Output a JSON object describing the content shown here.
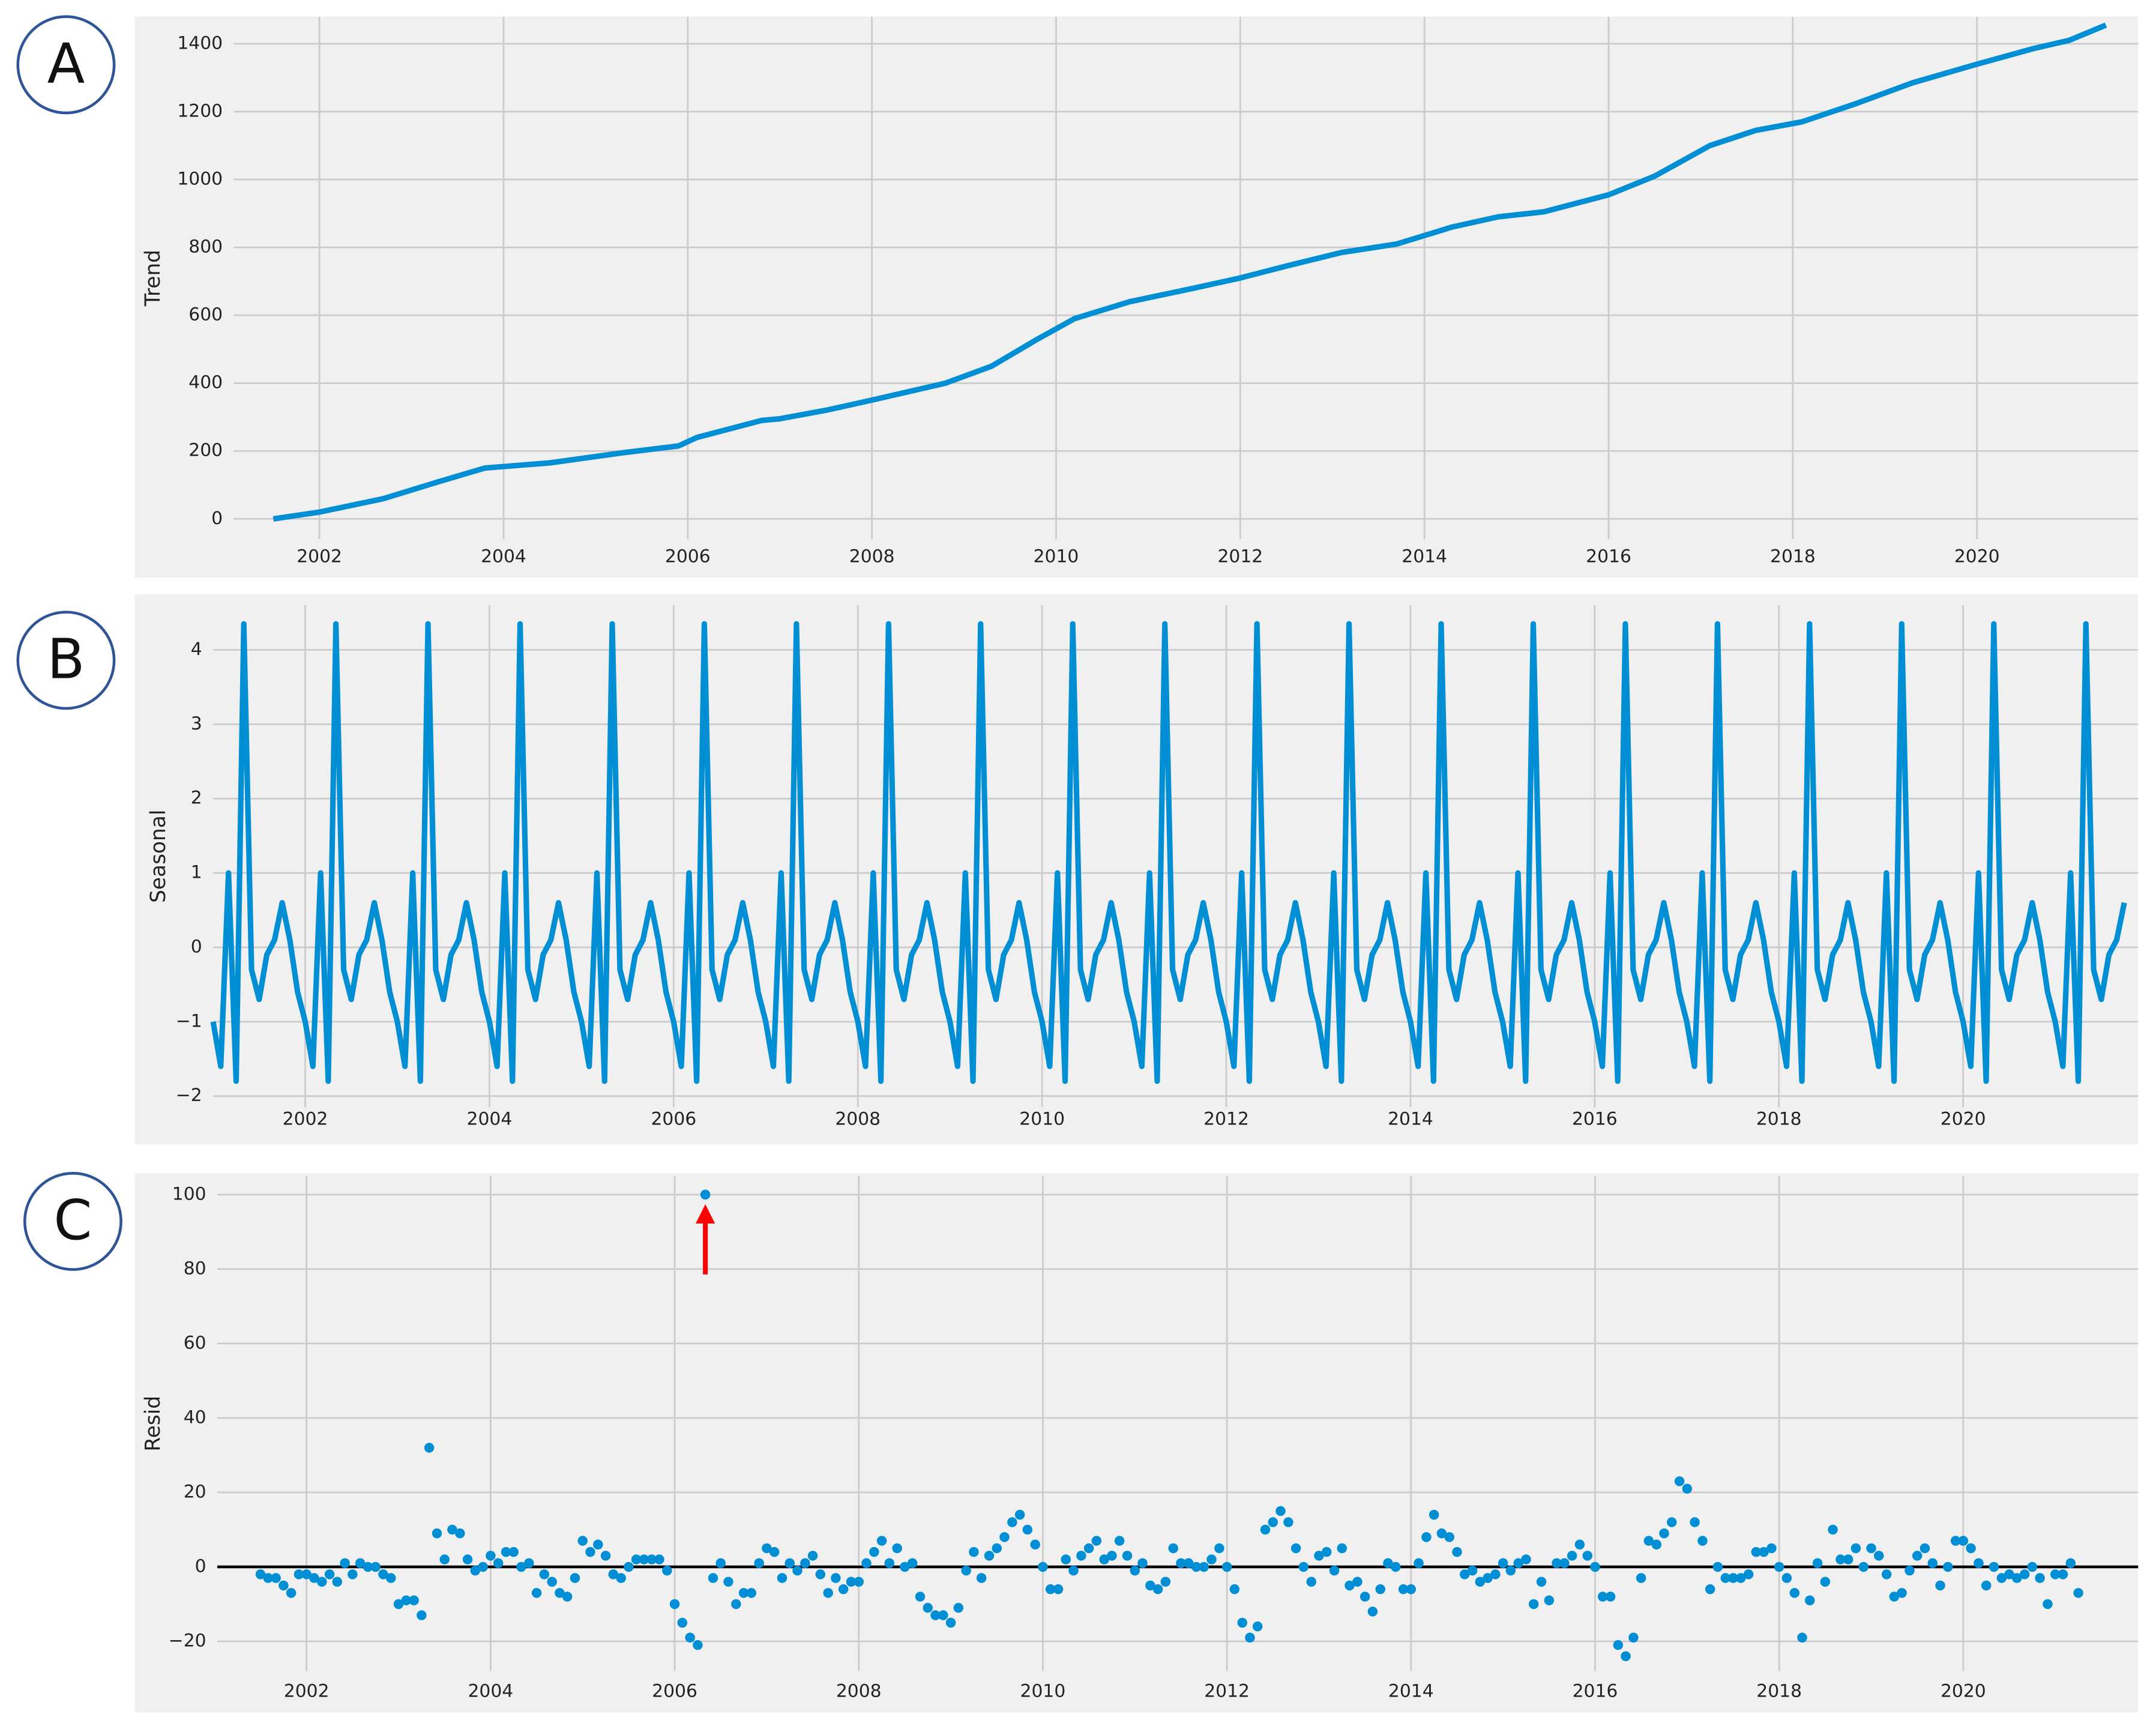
{
  "chart_data": [
    {
      "type": "line",
      "label": "A",
      "ylabel": "Trend",
      "color": "#008fd5",
      "grid": true,
      "x": [
        2001.5,
        2002,
        2002.7,
        2003.3,
        2003.8,
        2004.5,
        2005.3,
        2005.9,
        2006.1,
        2006.8,
        2007,
        2007.5,
        2008,
        2008.8,
        2009.3,
        2009.8,
        2010.2,
        2010.8,
        2011.5,
        2012,
        2012.5,
        2013.1,
        2013.7,
        2014.3,
        2014.8,
        2015.3,
        2016,
        2016.5,
        2017.1,
        2017.6,
        2018.1,
        2018.7,
        2019.3,
        2020,
        2020.6,
        2021,
        2021.4
      ],
      "values": [
        0,
        20,
        60,
        110,
        150,
        165,
        195,
        215,
        240,
        290,
        295,
        320,
        350,
        400,
        450,
        530,
        590,
        640,
        680,
        710,
        745,
        785,
        810,
        860,
        890,
        905,
        955,
        1010,
        1100,
        1145,
        1170,
        1225,
        1285,
        1340,
        1385,
        1410,
        1455
      ],
      "xlim": [
        2001.07,
        2021.75
      ],
      "xticks": [
        2002,
        2004,
        2006,
        2008,
        2010,
        2012,
        2014,
        2016,
        2018,
        2020
      ],
      "ylim": [
        -60,
        1480
      ],
      "yticks": [
        0,
        200,
        400,
        600,
        800,
        1000,
        1200,
        1400
      ]
    },
    {
      "type": "line",
      "label": "B",
      "ylabel": "Seasonal",
      "color": "#008fd5",
      "grid": true,
      "x": [
        2001,
        2001.083,
        2001.167,
        2001.25,
        2001.333,
        2001.417,
        2001.5,
        2001.583,
        2001.667,
        2001.75,
        2001.833,
        2001.917,
        2002,
        2002.083,
        2002.167,
        2002.25,
        2002.333,
        2002.417,
        2002.5,
        2002.583,
        2002.667,
        2002.75,
        2002.833,
        2002.917,
        2003,
        2003.083,
        2003.167,
        2003.25,
        2003.333,
        2003.417,
        2003.5,
        2003.583,
        2003.667,
        2003.75,
        2003.833,
        2003.917,
        2004,
        2004.083,
        2004.167,
        2004.25,
        2004.333,
        2004.417,
        2004.5,
        2004.583,
        2004.667,
        2004.75,
        2004.833,
        2004.917,
        2005,
        2005.083,
        2005.167,
        2005.25,
        2005.333,
        2005.417,
        2005.5,
        2005.583,
        2005.667,
        2005.75,
        2005.833,
        2005.917,
        2006,
        2006.083,
        2006.167,
        2006.25,
        2006.333,
        2006.417,
        2006.5,
        2006.583,
        2006.667,
        2006.75,
        2006.833,
        2006.917,
        2007,
        2007.083,
        2007.167,
        2007.25,
        2007.333,
        2007.417,
        2007.5,
        2007.583,
        2007.667,
        2007.75,
        2007.833,
        2007.917,
        2008,
        2008.083,
        2008.167,
        2008.25,
        2008.333,
        2008.417,
        2008.5,
        2008.583,
        2008.667,
        2008.75,
        2008.833,
        2008.917,
        2009,
        2009.083,
        2009.167,
        2009.25,
        2009.333,
        2009.417,
        2009.5,
        2009.583,
        2009.667,
        2009.75,
        2009.833,
        2009.917,
        2010,
        2010.083,
        2010.167,
        2010.25,
        2010.333,
        2010.417,
        2010.5,
        2010.583,
        2010.667,
        2010.75,
        2010.833,
        2010.917,
        2011,
        2011.083,
        2011.167,
        2011.25,
        2011.333,
        2011.417,
        2011.5,
        2011.583,
        2011.667,
        2011.75,
        2011.833,
        2011.917,
        2012,
        2012.083,
        2012.167,
        2012.25,
        2012.333,
        2012.417,
        2012.5,
        2012.583,
        2012.667,
        2012.75,
        2012.833,
        2012.917,
        2013,
        2013.083,
        2013.167,
        2013.25,
        2013.333,
        2013.417,
        2013.5,
        2013.583,
        2013.667,
        2013.75,
        2013.833,
        2013.917,
        2014,
        2014.083,
        2014.167,
        2014.25,
        2014.333,
        2014.417,
        2014.5,
        2014.583,
        2014.667,
        2014.75,
        2014.833,
        2014.917,
        2015,
        2015.083,
        2015.167,
        2015.25,
        2015.333,
        2015.417,
        2015.5,
        2015.583,
        2015.667,
        2015.75,
        2015.833,
        2015.917,
        2016,
        2016.083,
        2016.167,
        2016.25,
        2016.333,
        2016.417,
        2016.5,
        2016.583,
        2016.667,
        2016.75,
        2016.833,
        2016.917,
        2017,
        2017.083,
        2017.167,
        2017.25,
        2017.333,
        2017.417,
        2017.5,
        2017.583,
        2017.667,
        2017.75,
        2017.833,
        2017.917,
        2018,
        2018.083,
        2018.167,
        2018.25,
        2018.333,
        2018.417,
        2018.5,
        2018.583,
        2018.667,
        2018.75,
        2018.833,
        2018.917,
        2019,
        2019.083,
        2019.167,
        2019.25,
        2019.333,
        2019.417,
        2019.5,
        2019.583,
        2019.667,
        2019.75,
        2019.833,
        2019.917,
        2020,
        2020.083,
        2020.167,
        2020.25,
        2020.333,
        2020.417,
        2020.5,
        2020.583,
        2020.667,
        2020.75,
        2020.833,
        2020.917,
        2021,
        2021.083,
        2021.167,
        2021.25,
        2021.333,
        2021.417,
        2021.5,
        2021.583,
        2021.667,
        2021.75
      ],
      "values": [
        -1,
        -1.6,
        1,
        -1.8,
        4.35,
        -0.3,
        -0.7,
        -0.1,
        0.1,
        0.6,
        0.1,
        -0.6,
        -1,
        -1.6,
        1,
        -1.8,
        4.35,
        -0.3,
        -0.7,
        -0.1,
        0.1,
        0.6,
        0.1,
        -0.6,
        -1,
        -1.6,
        1,
        -1.8,
        4.35,
        -0.3,
        -0.7,
        -0.1,
        0.1,
        0.6,
        0.1,
        -0.6,
        -1,
        -1.6,
        1,
        -1.8,
        4.35,
        -0.3,
        -0.7,
        -0.1,
        0.1,
        0.6,
        0.1,
        -0.6,
        -1,
        -1.6,
        1,
        -1.8,
        4.35,
        -0.3,
        -0.7,
        -0.1,
        0.1,
        0.6,
        0.1,
        -0.6,
        -1,
        -1.6,
        1,
        -1.8,
        4.35,
        -0.3,
        -0.7,
        -0.1,
        0.1,
        0.6,
        0.1,
        -0.6,
        -1,
        -1.6,
        1,
        -1.8,
        4.35,
        -0.3,
        -0.7,
        -0.1,
        0.1,
        0.6,
        0.1,
        -0.6,
        -1,
        -1.6,
        1,
        -1.8,
        4.35,
        -0.3,
        -0.7,
        -0.1,
        0.1,
        0.6,
        0.1,
        -0.6,
        -1,
        -1.6,
        1,
        -1.8,
        4.35,
        -0.3,
        -0.7,
        -0.1,
        0.1,
        0.6,
        0.1,
        -0.6,
        -1,
        -1.6,
        1,
        -1.8,
        4.35,
        -0.3,
        -0.7,
        -0.1,
        0.1,
        0.6,
        0.1,
        -0.6,
        -1,
        -1.6,
        1,
        -1.8,
        4.35,
        -0.3,
        -0.7,
        -0.1,
        0.1,
        0.6,
        0.1,
        -0.6,
        -1,
        -1.6,
        1,
        -1.8,
        4.35,
        -0.3,
        -0.7,
        -0.1,
        0.1,
        0.6,
        0.1,
        -0.6,
        -1,
        -1.6,
        1,
        -1.8,
        4.35,
        -0.3,
        -0.7,
        -0.1,
        0.1,
        0.6,
        0.1,
        -0.6,
        -1,
        -1.6,
        1,
        -1.8,
        4.35,
        -0.3,
        -0.7,
        -0.1,
        0.1,
        0.6,
        0.1,
        -0.6,
        -1,
        -1.6,
        1,
        -1.8,
        4.35,
        -0.3,
        -0.7,
        -0.1,
        0.1,
        0.6,
        0.1,
        -0.6,
        -1,
        -1.6,
        1,
        -1.8,
        4.35,
        -0.3,
        -0.7,
        -0.1,
        0.1,
        0.6,
        0.1,
        -0.6,
        -1,
        -1.6,
        1,
        -1.8,
        4.35,
        -0.3,
        -0.7,
        -0.1,
        0.1,
        0.6,
        0.1,
        -0.6,
        -1,
        -1.6,
        1,
        -1.8,
        4.35,
        -0.3,
        -0.7,
        -0.1,
        0.1,
        0.6,
        0.1,
        -0.6,
        -1,
        -1.6,
        1,
        -1.8,
        4.35,
        -0.3,
        -0.7,
        -0.1,
        0.1,
        0.6,
        0.1,
        -0.6,
        -1,
        -1.6,
        1,
        -1.8,
        4.35,
        -0.3,
        -0.7,
        -0.1,
        0.1,
        0.6,
        0.1,
        -0.6,
        -1,
        -1.6,
        1,
        -1.8,
        4.35,
        -0.3,
        -0.7,
        -0.1,
        0.1,
        0.6
      ],
      "xlim": [
        2001,
        2021.9
      ],
      "xticks": [
        2002,
        2004,
        2006,
        2008,
        2010,
        2012,
        2014,
        2016,
        2018,
        2020
      ],
      "ylim": [
        -2.15,
        4.6
      ],
      "yticks": [
        {
          "value": -2,
          "label": "−2"
        },
        {
          "value": -1,
          "label": "−1"
        },
        0,
        1,
        2,
        3,
        4
      ]
    },
    {
      "type": "scatter",
      "label": "C",
      "ylabel": "Resid",
      "color": "#008fd5",
      "grid": true,
      "hline": 0,
      "x": [
        2001.5,
        2001.583,
        2001.667,
        2001.75,
        2001.833,
        2001.917,
        2002,
        2002.083,
        2002.167,
        2002.25,
        2002.333,
        2002.417,
        2002.5,
        2002.583,
        2002.667,
        2002.75,
        2002.833,
        2002.917,
        2003,
        2003.083,
        2003.167,
        2003.25,
        2003.333,
        2003.417,
        2003.5,
        2003.583,
        2003.667,
        2003.75,
        2003.833,
        2003.917,
        2004,
        2004.083,
        2004.167,
        2004.25,
        2004.333,
        2004.417,
        2004.5,
        2004.583,
        2004.667,
        2004.75,
        2004.833,
        2004.917,
        2005,
        2005.083,
        2005.167,
        2005.25,
        2005.333,
        2005.417,
        2005.5,
        2005.583,
        2005.667,
        2005.75,
        2005.833,
        2005.917,
        2006,
        2006.083,
        2006.167,
        2006.25,
        2006.333,
        2006.417,
        2006.5,
        2006.583,
        2006.667,
        2006.75,
        2006.833,
        2006.917,
        2007,
        2007.083,
        2007.167,
        2007.25,
        2007.333,
        2007.417,
        2007.5,
        2007.583,
        2007.667,
        2007.75,
        2007.833,
        2007.917,
        2008,
        2008.083,
        2008.167,
        2008.25,
        2008.333,
        2008.417,
        2008.5,
        2008.583,
        2008.667,
        2008.75,
        2008.833,
        2008.917,
        2009,
        2009.083,
        2009.167,
        2009.25,
        2009.333,
        2009.417,
        2009.5,
        2009.583,
        2009.667,
        2009.75,
        2009.833,
        2009.917,
        2010,
        2010.083,
        2010.167,
        2010.25,
        2010.333,
        2010.417,
        2010.5,
        2010.583,
        2010.667,
        2010.75,
        2010.833,
        2010.917,
        2011,
        2011.083,
        2011.167,
        2011.25,
        2011.333,
        2011.417,
        2011.5,
        2011.583,
        2011.667,
        2011.75,
        2011.833,
        2011.917,
        2012,
        2012.083,
        2012.167,
        2012.25,
        2012.333,
        2012.417,
        2012.5,
        2012.583,
        2012.667,
        2012.75,
        2012.833,
        2012.917,
        2013,
        2013.083,
        2013.167,
        2013.25,
        2013.333,
        2013.417,
        2013.5,
        2013.583,
        2013.667,
        2013.75,
        2013.833,
        2013.917,
        2014,
        2014.083,
        2014.167,
        2014.25,
        2014.333,
        2014.417,
        2014.5,
        2014.583,
        2014.667,
        2014.75,
        2014.833,
        2014.917,
        2015,
        2015.083,
        2015.167,
        2015.25,
        2015.333,
        2015.417,
        2015.5,
        2015.583,
        2015.667,
        2015.75,
        2015.833,
        2015.917,
        2016,
        2016.083,
        2016.167,
        2016.25,
        2016.333,
        2016.417,
        2016.5,
        2016.583,
        2016.667,
        2016.75,
        2016.833,
        2016.917,
        2017,
        2017.083,
        2017.167,
        2017.25,
        2017.333,
        2017.417,
        2017.5,
        2017.583,
        2017.667,
        2017.75,
        2017.833,
        2017.917,
        2018,
        2018.083,
        2018.167,
        2018.25,
        2018.333,
        2018.417,
        2018.5,
        2018.583,
        2018.667,
        2018.75,
        2018.833,
        2018.917,
        2019,
        2019.083,
        2019.167,
        2019.25,
        2019.333,
        2019.417,
        2019.5,
        2019.583,
        2019.667,
        2019.75,
        2019.833,
        2019.917,
        2020,
        2020.083,
        2020.167,
        2020.25,
        2020.333,
        2020.417,
        2020.5,
        2020.583,
        2020.667,
        2020.75,
        2020.833,
        2020.917,
        2021,
        2021.083,
        2021.167,
        2021.25
      ],
      "values": [
        -2,
        -3,
        -3,
        -5,
        -7,
        -2,
        -2,
        -3,
        -4,
        -2,
        -4,
        1,
        -2,
        1,
        0,
        0,
        -2,
        -3,
        -10,
        -9,
        -9,
        -13,
        32,
        9,
        2,
        10,
        9,
        2,
        -1,
        0,
        3,
        1,
        4,
        4,
        0,
        1,
        -7,
        -2,
        -4,
        -7,
        -8,
        -3,
        7,
        4,
        6,
        3,
        -2,
        -3,
        0,
        2,
        2,
        2,
        2,
        -1,
        -10,
        -15,
        -19,
        -21,
        100,
        -3,
        1,
        -4,
        -10,
        -7,
        -7,
        1,
        5,
        4,
        -3,
        1,
        -1,
        1,
        3,
        -2,
        -7,
        -3,
        -6,
        -4,
        -4,
        1,
        4,
        7,
        1,
        5,
        0,
        1,
        -8,
        -11,
        -13,
        -13,
        -15,
        -11,
        -1,
        4,
        -3,
        3,
        5,
        8,
        12,
        14,
        10,
        6,
        0,
        -6,
        -6,
        2,
        -1,
        3,
        5,
        7,
        2,
        3,
        7,
        3,
        -1,
        1,
        -5,
        -6,
        -4,
        5,
        1,
        1,
        0,
        0,
        2,
        5,
        0,
        -6,
        -15,
        -19,
        -16,
        10,
        12,
        15,
        12,
        5,
        0,
        -4,
        3,
        4,
        -1,
        5,
        -5,
        -4,
        -8,
        -12,
        -6,
        1,
        0,
        -6,
        -6,
        1,
        8,
        14,
        9,
        8,
        4,
        -2,
        -1,
        -4,
        -3,
        -2,
        1,
        -1,
        1,
        2,
        -10,
        -4,
        -9,
        1,
        1,
        3,
        6,
        3,
        0,
        -8,
        -8,
        -21,
        -24,
        -19,
        -3,
        7,
        6,
        9,
        12,
        23,
        21,
        12,
        7,
        -6,
        0,
        -3,
        -3,
        -3,
        -2,
        4,
        4,
        5,
        0,
        -3,
        -7,
        -19,
        -9,
        1,
        -4,
        10,
        2,
        2,
        5,
        0,
        5,
        3,
        -2,
        -8,
        -7,
        -1,
        3,
        5,
        1,
        -5,
        0,
        7,
        7,
        5,
        1,
        -5,
        0,
        -3,
        -2,
        -3,
        -2,
        0,
        -3,
        -10,
        -2,
        -2,
        1,
        -7
      ],
      "xlim": [
        2001.03,
        2021.9
      ],
      "xticks": [
        2002,
        2004,
        2006,
        2008,
        2010,
        2012,
        2014,
        2016,
        2018,
        2020
      ],
      "ylim": [
        -28,
        105
      ],
      "yticks": [
        {
          "value": -20,
          "label": "−20"
        },
        0,
        20,
        40,
        60,
        80,
        100
      ]
    }
  ]
}
